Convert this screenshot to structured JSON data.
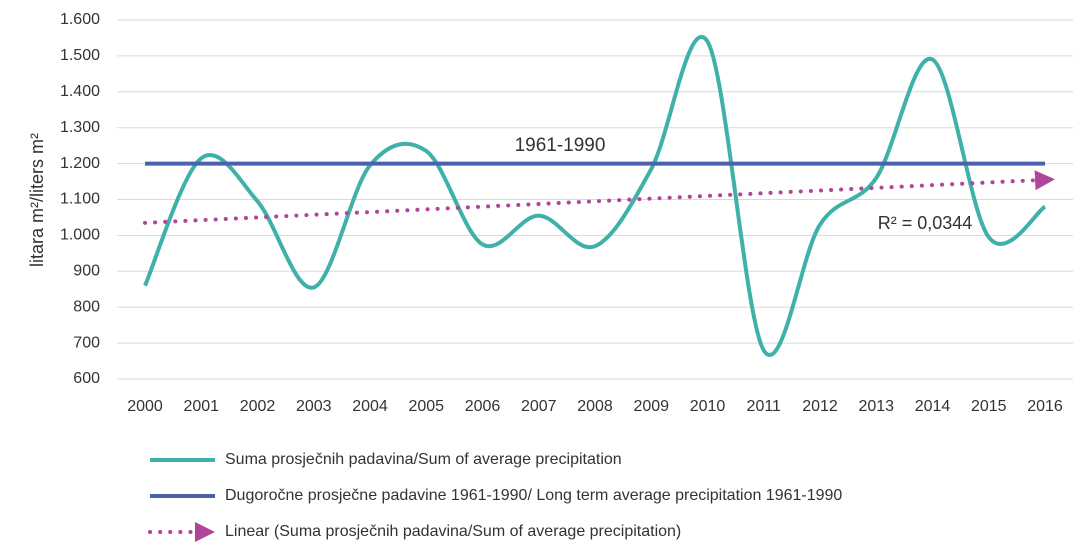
{
  "chart_data": {
    "type": "line",
    "y_label": "litara m²/liters m²",
    "categories": [
      "2000",
      "2001",
      "2002",
      "2003",
      "2004",
      "2005",
      "2006",
      "2007",
      "2008",
      "2009",
      "2010",
      "2011",
      "2012",
      "2013",
      "2014",
      "2015",
      "2016"
    ],
    "series": [
      {
        "name": "Suma prosječnih padavina/Sum of average precipitation",
        "color": "#3fb1a8",
        "smooth": true,
        "values": [
          860,
          1215,
          1095,
          855,
          1195,
          1235,
          975,
          1055,
          970,
          1185,
          1540,
          680,
          1030,
          1160,
          1490,
          995,
          1080
        ]
      },
      {
        "name": "Dugoročne prosječne padavine 1961-1990/ Long term average precipitation 1961-1990",
        "color": "#4a62ae",
        "values": [
          1200,
          1200,
          1200,
          1200,
          1200,
          1200,
          1200,
          1200,
          1200,
          1200,
          1200,
          1200,
          1200,
          1200,
          1200,
          1200,
          1200
        ]
      },
      {
        "name": "Linear (Suma prosječnih padavina/Sum of average precipitation)",
        "color": "#b0469a",
        "line_style": "dotted",
        "values": [
          1035,
          1042.5,
          1050,
          1057.5,
          1065,
          1072.5,
          1080,
          1087.5,
          1095,
          1102.5,
          1110,
          1117.5,
          1125,
          1132.5,
          1140,
          1147.5,
          1155
        ]
      }
    ],
    "annotations": [
      "1961-1990",
      "R² = 0,0344"
    ],
    "ylim": [
      600,
      1600
    ],
    "yticks": [
      600,
      700,
      800,
      900,
      {
        "value": 1000,
        "label": "1.000"
      },
      {
        "value": 1100,
        "label": "1.100"
      },
      {
        "value": 1200,
        "label": "1.200"
      },
      {
        "value": 1300,
        "label": "1.300"
      },
      {
        "value": 1400,
        "label": "1.400"
      },
      {
        "value": 1500,
        "label": "1.500"
      },
      {
        "value": 1600,
        "label": "1.600"
      }
    ],
    "grid": true
  }
}
